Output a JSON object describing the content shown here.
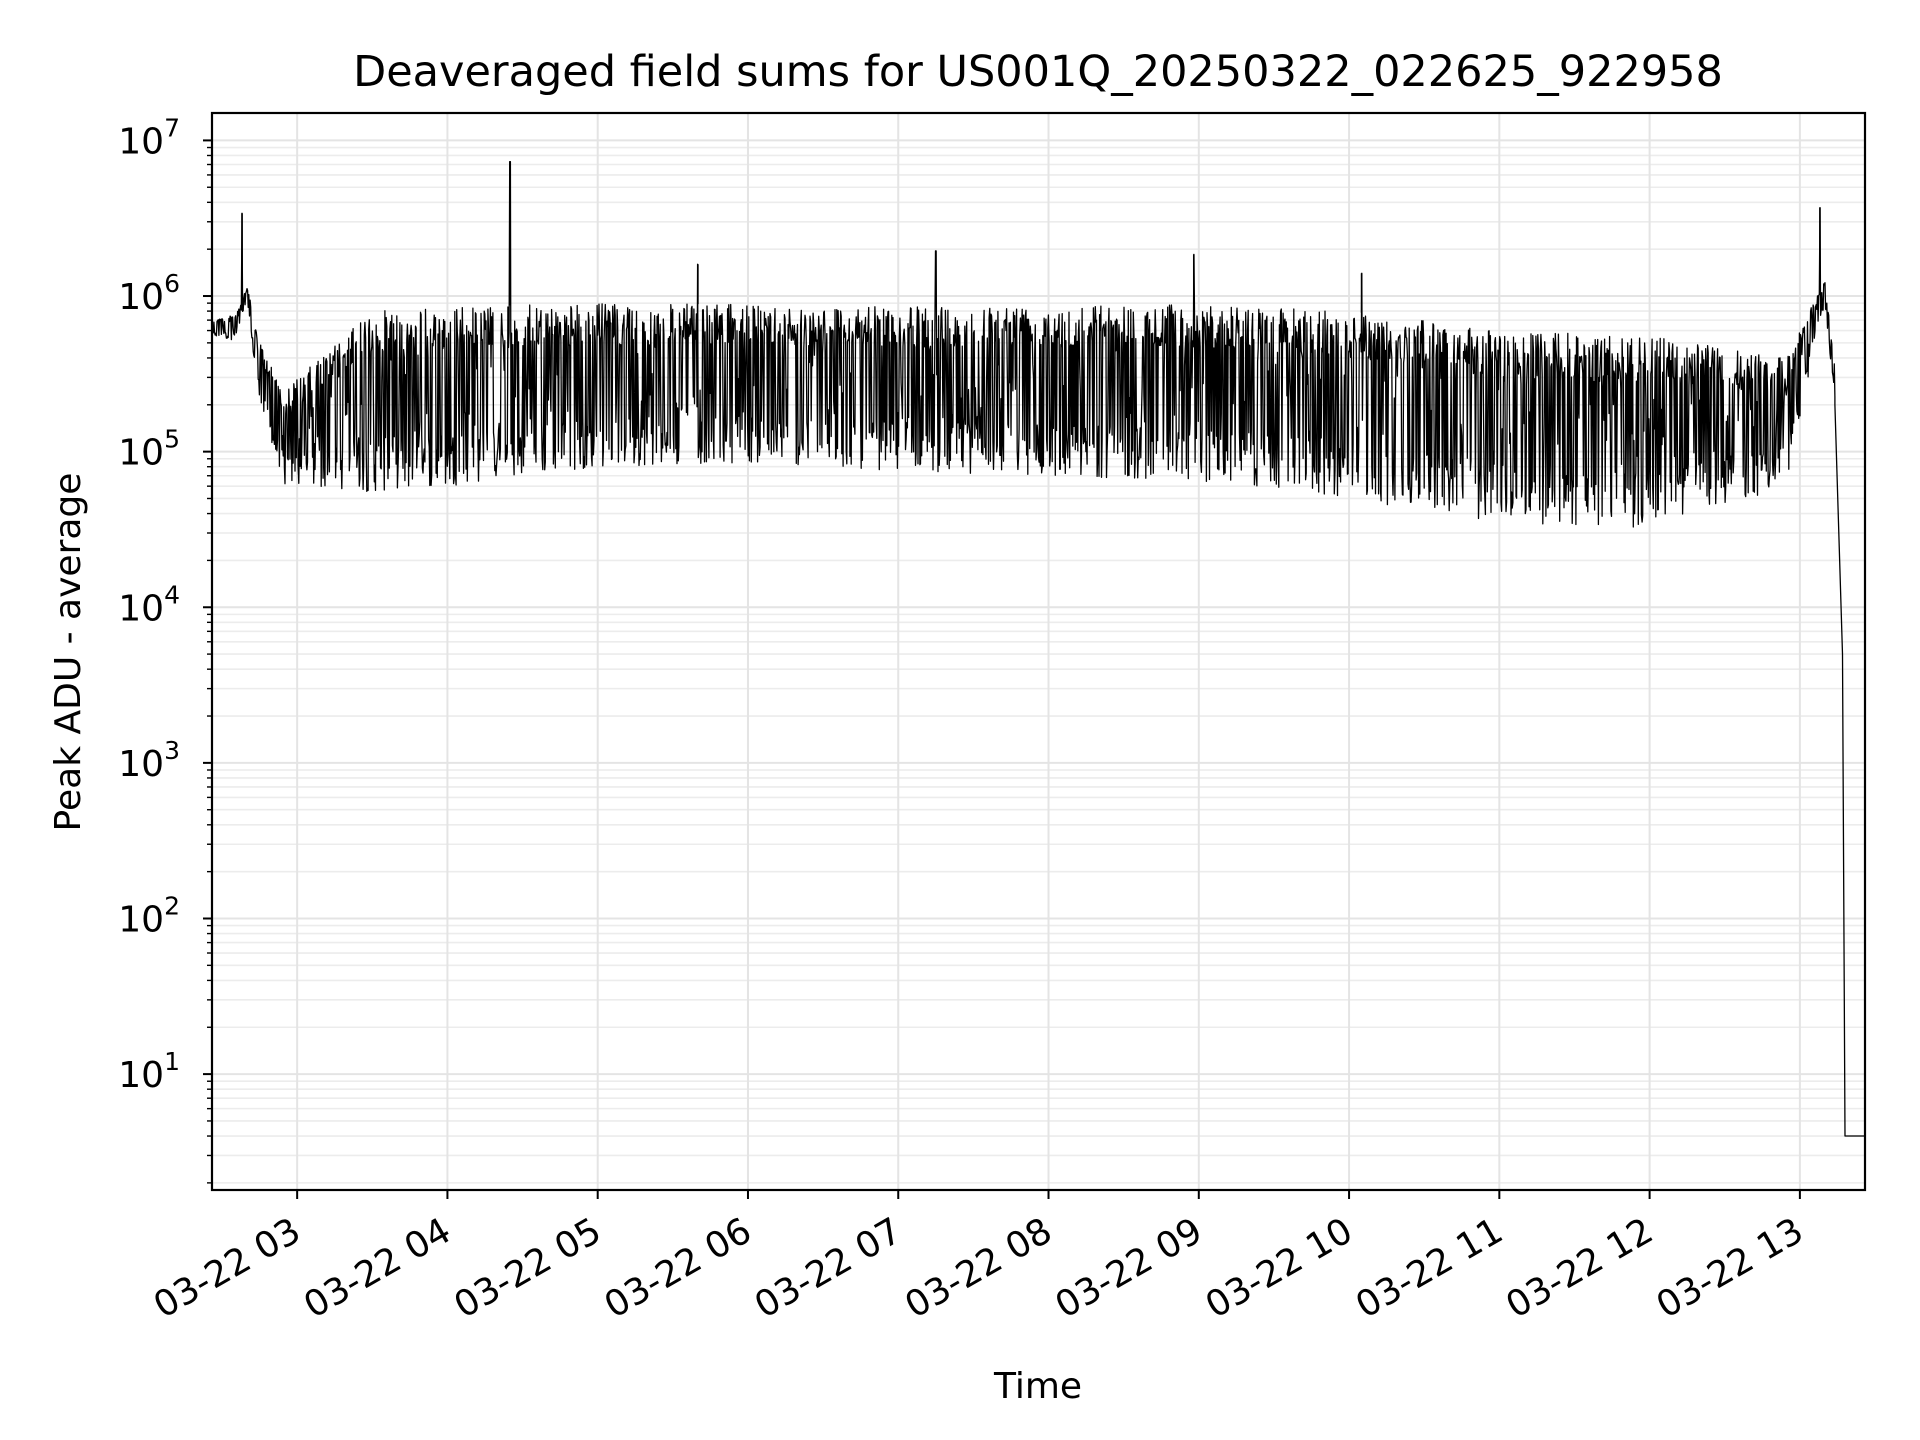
{
  "chart_data": {
    "type": "line",
    "title": "Deaveraged field sums for US001Q_20250322_022625_922958",
    "xlabel": "Time",
    "ylabel": "Peak ADU - average",
    "yscale": "log",
    "ylim": [
      1.8,
      15000000
    ],
    "xlim": [
      "2025-03-22 02:26",
      "2025-03-22 13:26"
    ],
    "grid": true,
    "x_ticks": [
      {
        "value": "2025-03-22 03:00",
        "label": "03-22 03"
      },
      {
        "value": "2025-03-22 04:00",
        "label": "03-22 04"
      },
      {
        "value": "2025-03-22 05:00",
        "label": "03-22 05"
      },
      {
        "value": "2025-03-22 06:00",
        "label": "03-22 06"
      },
      {
        "value": "2025-03-22 07:00",
        "label": "03-22 07"
      },
      {
        "value": "2025-03-22 08:00",
        "label": "03-22 08"
      },
      {
        "value": "2025-03-22 09:00",
        "label": "03-22 09"
      },
      {
        "value": "2025-03-22 10:00",
        "label": "03-22 10"
      },
      {
        "value": "2025-03-22 11:00",
        "label": "03-22 11"
      },
      {
        "value": "2025-03-22 12:00",
        "label": "03-22 12"
      },
      {
        "value": "2025-03-22 13:00",
        "label": "03-22 13"
      }
    ],
    "y_ticks": [
      {
        "value": 10,
        "base": "10",
        "exp": "1"
      },
      {
        "value": 100,
        "base": "10",
        "exp": "2"
      },
      {
        "value": 1000,
        "base": "10",
        "exp": "3"
      },
      {
        "value": 10000,
        "base": "10",
        "exp": "4"
      },
      {
        "value": 100000,
        "base": "10",
        "exp": "5"
      },
      {
        "value": 1000000,
        "base": "10",
        "exp": "6"
      },
      {
        "value": 10000000,
        "base": "10",
        "exp": "7"
      }
    ],
    "series": [
      {
        "color": "#000000",
        "envelope": [
          {
            "x": "2025-03-22 02:26",
            "low": 550000,
            "high": 720000
          },
          {
            "x": "2025-03-22 02:35",
            "low": 520000,
            "high": 750000
          },
          {
            "x": "2025-03-22 02:40",
            "low": 900000,
            "high": 1150000
          },
          {
            "x": "2025-03-22 02:45",
            "low": 200000,
            "high": 500000
          },
          {
            "x": "2025-03-22 02:55",
            "low": 60000,
            "high": 250000
          },
          {
            "x": "2025-03-22 03:30",
            "low": 55000,
            "high": 800000
          },
          {
            "x": "2025-03-22 04:00",
            "low": 60000,
            "high": 850000
          },
          {
            "x": "2025-03-22 05:00",
            "low": 80000,
            "high": 900000
          },
          {
            "x": "2025-03-22 06:00",
            "low": 85000,
            "high": 880000
          },
          {
            "x": "2025-03-22 07:00",
            "low": 75000,
            "high": 850000
          },
          {
            "x": "2025-03-22 08:00",
            "low": 70000,
            "high": 900000
          },
          {
            "x": "2025-03-22 09:00",
            "low": 65000,
            "high": 880000
          },
          {
            "x": "2025-03-22 10:00",
            "low": 50000,
            "high": 800000
          },
          {
            "x": "2025-03-22 11:00",
            "low": 35000,
            "high": 600000
          },
          {
            "x": "2025-03-22 12:00",
            "low": 32000,
            "high": 550000
          },
          {
            "x": "2025-03-22 12:55",
            "low": 60000,
            "high": 400000
          },
          {
            "x": "2025-03-22 13:05",
            "low": 400000,
            "high": 900000
          },
          {
            "x": "2025-03-22 13:10",
            "low": 900000,
            "high": 1250000
          },
          {
            "x": "2025-03-22 13:14",
            "low": 200000,
            "high": 350000
          }
        ],
        "drop": [
          {
            "x": "2025-03-22 13:14",
            "y": 200000
          },
          {
            "x": "2025-03-22 13:17",
            "y": 5000
          },
          {
            "x": "2025-03-22 13:18",
            "y": 4
          },
          {
            "x": "2025-03-22 13:26",
            "y": 4
          }
        ],
        "spikes": [
          {
            "x": "2025-03-22 02:38",
            "y": 3400000
          },
          {
            "x": "2025-03-22 04:25",
            "y": 7300000
          },
          {
            "x": "2025-03-22 05:40",
            "y": 1600000
          },
          {
            "x": "2025-03-22 07:15",
            "y": 1950000
          },
          {
            "x": "2025-03-22 08:58",
            "y": 1850000
          },
          {
            "x": "2025-03-22 10:05",
            "y": 1400000
          },
          {
            "x": "2025-03-22 13:08",
            "y": 3700000
          }
        ]
      }
    ]
  }
}
